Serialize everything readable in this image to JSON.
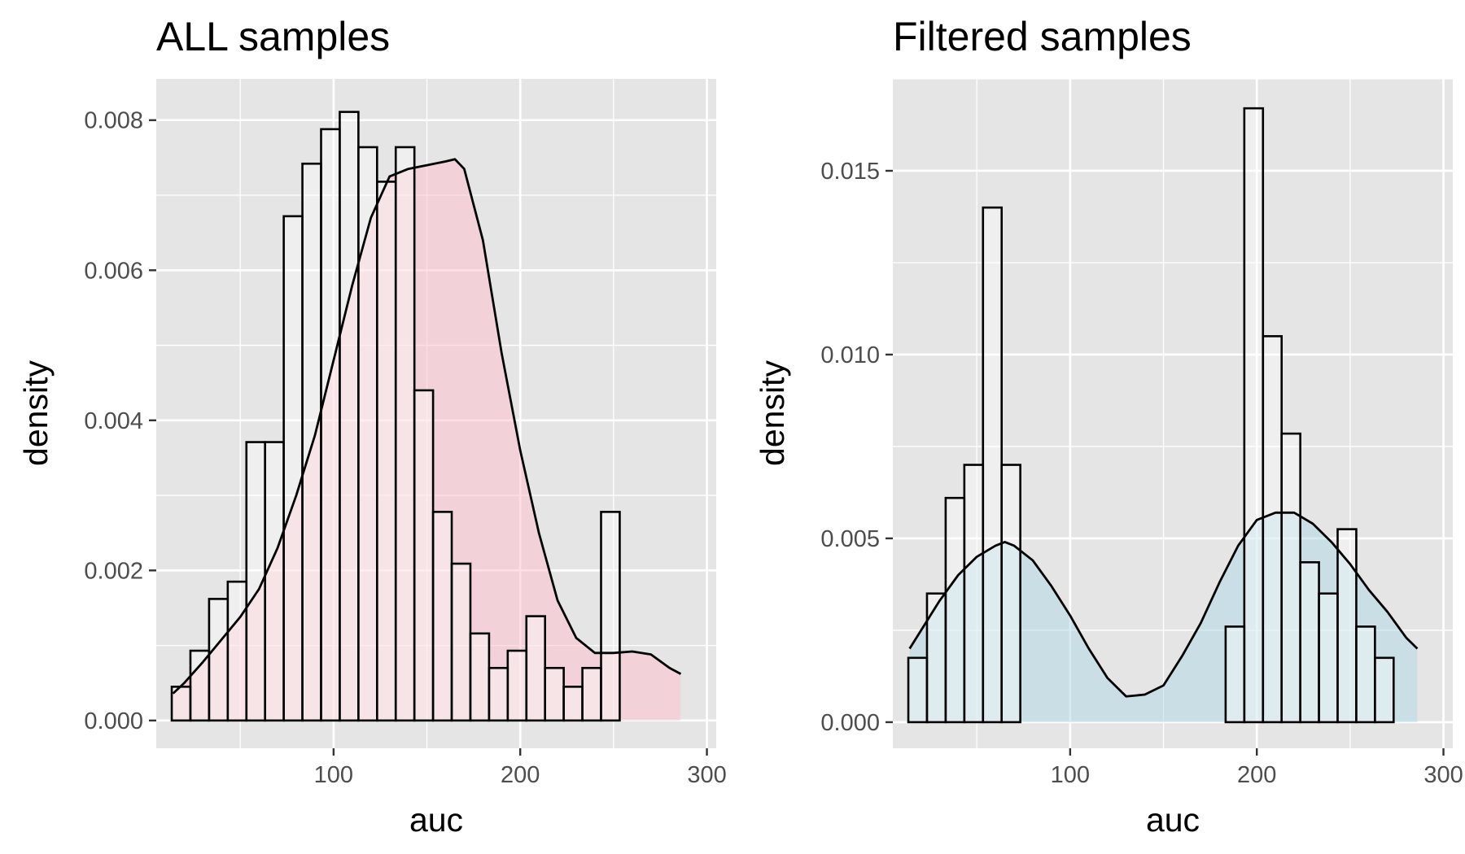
{
  "figure": {
    "background": "#ffffff",
    "panel_background": "#e5e5e5",
    "grid_color": "#ffffff",
    "tick_color": "#333333",
    "tick_label_color": "#4d4d4d",
    "text_color": "#000000",
    "bar_fill": "#ffffff",
    "bar_stroke": "#000000",
    "density_stroke": "#000000"
  },
  "chart_data": [
    {
      "type": "bar",
      "title": "ALL samples",
      "xlabel": "auc",
      "ylabel": "density",
      "xlim": [
        5,
        305
      ],
      "ylim": [
        -0.00037,
        0.00855
      ],
      "xticks": [
        100,
        200,
        300
      ],
      "xtick_labels": [
        "100",
        "200",
        "300"
      ],
      "yticks": [
        0,
        0.002,
        0.004,
        0.006,
        0.008
      ],
      "ytick_labels": [
        "0.000",
        "0.002",
        "0.004",
        "0.006",
        "0.008"
      ],
      "grid": true,
      "density_fill": "#ffc0cb",
      "density_fill_opacity": 0.5,
      "histogram": {
        "bin_width": 10,
        "bin_start": 13.3,
        "values": [
          0.00045,
          0.00093,
          0.00162,
          0.00185,
          0.00371,
          0.00371,
          0.00672,
          0.00742,
          0.00788,
          0.00811,
          0.00764,
          0.00718,
          0.00764,
          0.0044,
          0.00278,
          0.00209,
          0.00116,
          0.0007,
          0.00093,
          0.00139,
          0.0007,
          0.00045,
          0.0007,
          0.00278
        ]
      },
      "density": {
        "x": [
          14,
          20,
          30,
          40,
          50,
          60,
          70,
          80,
          90,
          100,
          110,
          120,
          130,
          140,
          150,
          160,
          165,
          170,
          180,
          190,
          200,
          210,
          220,
          230,
          240,
          250,
          260,
          270,
          280,
          286
        ],
        "y": [
          0.00036,
          0.0005,
          0.00078,
          0.00108,
          0.00138,
          0.00175,
          0.0023,
          0.003,
          0.0038,
          0.0048,
          0.0058,
          0.0067,
          0.00725,
          0.00735,
          0.0074,
          0.00745,
          0.00748,
          0.00735,
          0.0064,
          0.0049,
          0.0036,
          0.0025,
          0.0016,
          0.0011,
          0.0009,
          0.0009,
          0.00092,
          0.00088,
          0.0007,
          0.00062
        ]
      }
    },
    {
      "type": "bar",
      "title": "Filtered samples",
      "xlabel": "auc",
      "ylabel": "density",
      "xlim": [
        5,
        305
      ],
      "ylim": [
        -0.00071,
        0.0175
      ],
      "xticks": [
        100,
        200,
        300
      ],
      "xtick_labels": [
        "100",
        "200",
        "300"
      ],
      "yticks": [
        0,
        0.005,
        0.01,
        0.015
      ],
      "ytick_labels": [
        "0.000",
        "0.005",
        "0.010",
        "0.015"
      ],
      "grid": true,
      "density_fill": "#add8e6",
      "density_fill_opacity": 0.5,
      "histogram": {
        "bin_width": 10,
        "bin_start": 13.3,
        "values": [
          0.00175,
          0.0035,
          0.0061,
          0.007,
          0.014,
          0.007,
          0,
          0,
          0,
          0,
          0,
          0,
          0,
          0,
          0,
          0,
          0,
          0.0026,
          0.0167,
          0.0105,
          0.00785,
          0.00435,
          0.0035,
          0.00525,
          0.0026,
          0.00175
        ]
      },
      "density": {
        "x": [
          14,
          30,
          40,
          50,
          60,
          65,
          70,
          80,
          90,
          100,
          110,
          120,
          130,
          140,
          150,
          160,
          170,
          180,
          190,
          200,
          210,
          220,
          230,
          240,
          250,
          260,
          270,
          280,
          286
        ],
        "y": [
          0.002,
          0.0033,
          0.004,
          0.0045,
          0.0048,
          0.0049,
          0.0048,
          0.0044,
          0.0037,
          0.0029,
          0.002,
          0.0012,
          0.0007,
          0.00075,
          0.001,
          0.0018,
          0.0027,
          0.0038,
          0.0048,
          0.0055,
          0.0057,
          0.0057,
          0.0054,
          0.0049,
          0.0043,
          0.0036,
          0.003,
          0.0023,
          0.002
        ]
      }
    }
  ]
}
